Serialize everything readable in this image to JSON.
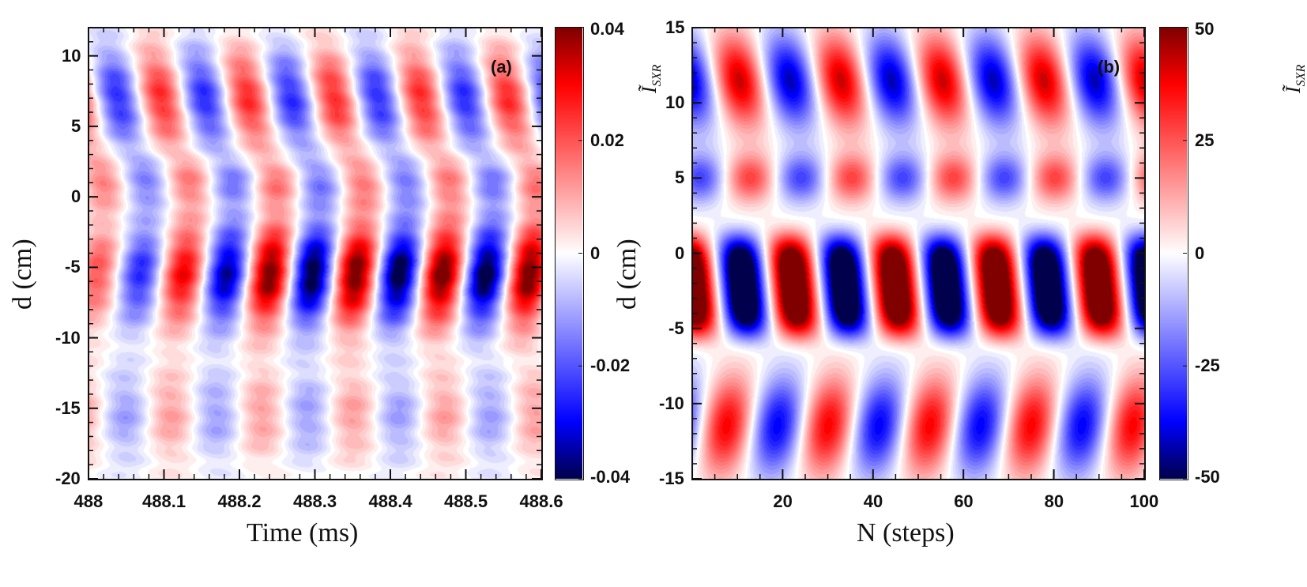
{
  "chart_data": [
    {
      "type": "heatmap",
      "panel_label": "(a)",
      "xlabel": "Time (ms)",
      "ylabel": "d (cm)",
      "xlim": [
        488,
        488.6
      ],
      "ylim": [
        -20,
        12
      ],
      "x_ticks": [
        "488",
        "488.1",
        "488.2",
        "488.3",
        "488.4",
        "488.5",
        "488.6"
      ],
      "x_tick_values": [
        488,
        488.1,
        488.2,
        488.3,
        488.4,
        488.5,
        488.6
      ],
      "y_ticks": [
        "10",
        "5",
        "0",
        "-5",
        "-10",
        "-15",
        "-20"
      ],
      "y_tick_values": [
        10,
        5,
        0,
        -5,
        -10,
        -15,
        -20
      ],
      "colorbar": {
        "label": "Ĩ",
        "label_sub": "SXR",
        "range": [
          -0.04,
          0.04
        ],
        "ticks": [
          "0.04",
          "0.02",
          "0",
          "-0.02",
          "-0.04"
        ],
        "tick_values": [
          0.04,
          0.02,
          0,
          -0.02,
          -0.04
        ]
      },
      "description_values": {
        "oscillation_period_ms": 0.115,
        "core_band_d_range": [
          -10,
          0
        ],
        "upper_band_d_range": [
          2,
          12
        ],
        "lower_band_d_range": [
          -20,
          -12
        ]
      }
    },
    {
      "type": "heatmap",
      "panel_label": "(b)",
      "xlabel": "N (steps)",
      "ylabel": "d (cm)",
      "xlim": [
        0,
        100
      ],
      "ylim": [
        -15,
        15
      ],
      "x_ticks": [
        "20",
        "40",
        "60",
        "80",
        "100"
      ],
      "x_tick_values": [
        20,
        40,
        60,
        80,
        100
      ],
      "y_ticks": [
        "15",
        "10",
        "5",
        "0",
        "-5",
        "-10",
        "-15"
      ],
      "y_tick_values": [
        15,
        10,
        5,
        0,
        -5,
        -10,
        -15
      ],
      "colorbar": {
        "label": "Ĩ",
        "label_sub": "SXR",
        "range": [
          -50,
          50
        ],
        "ticks": [
          "50",
          "25",
          "0",
          "-25",
          "-50"
        ],
        "tick_values": [
          50,
          25,
          0,
          -25,
          -50
        ]
      },
      "description_values": {
        "oscillation_period_steps": 22.5,
        "core_band_d_range": [
          -6,
          2.5
        ],
        "upper_band_d_range": [
          8,
          15
        ],
        "lower_band_d_range": [
          -15,
          -8
        ]
      }
    }
  ],
  "colors": {
    "min": "#00004d",
    "neg": "#0000ff",
    "zero": "#ffffff",
    "pos": "#ff0000",
    "max": "#800000"
  }
}
